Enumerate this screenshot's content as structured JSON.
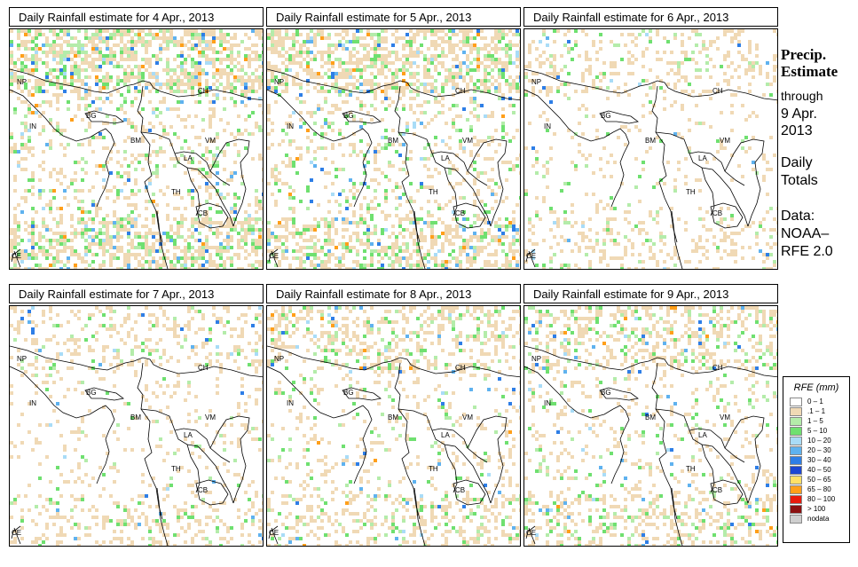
{
  "panels": [
    {
      "title": "Daily Rainfall estimate for  4 Apr., 2013",
      "level": "high"
    },
    {
      "title": "Daily Rainfall estimate for  5 Apr., 2013",
      "level": "high"
    },
    {
      "title": "Daily Rainfall estimate for  6 Apr., 2013",
      "level": "low"
    },
    {
      "title": "Daily Rainfall estimate for  7 Apr., 2013",
      "level": "low"
    },
    {
      "title": "Daily Rainfall estimate for  8 Apr., 2013",
      "level": "mid"
    },
    {
      "title": "Daily Rainfall estimate for  9 Apr., 2013",
      "level": "mid"
    }
  ],
  "country_labels": [
    "NP",
    "CH",
    "IN",
    "BG",
    "BM",
    "VM",
    "LA",
    "TH",
    "CB",
    "CE"
  ],
  "sidebar": {
    "title_line1": "Precip.",
    "title_line2": "Estimate",
    "through": "through",
    "date_line1": "9 Apr.",
    "date_line2": "2013",
    "daily_line1": "Daily",
    "daily_line2": "Totals",
    "data_line1": "Data:",
    "data_line2": "NOAA–",
    "data_line3": "RFE 2.0"
  },
  "legend": {
    "title": "RFE (mm)",
    "items": [
      {
        "label": "0 – 1",
        "color": "#ffffff"
      },
      {
        "label": ".1 – 1",
        "color": "#f0d9b5"
      },
      {
        "label": "1 – 5",
        "color": "#b4ecaa"
      },
      {
        "label": "5 – 10",
        "color": "#6fe070"
      },
      {
        "label": "10 – 20",
        "color": "#a9dcf7"
      },
      {
        "label": "20 – 30",
        "color": "#5fb2ef"
      },
      {
        "label": "30 – 40",
        "color": "#2e7ee6"
      },
      {
        "label": "40 – 50",
        "color": "#1c46d2"
      },
      {
        "label": "50 – 65",
        "color": "#ffe066"
      },
      {
        "label": "65 – 80",
        "color": "#ff9f1a"
      },
      {
        "label": "80 – 100",
        "color": "#e81a0c"
      },
      {
        "label": "> 100",
        "color": "#8b1010"
      },
      {
        "label": "nodata",
        "color": "#cfcfcf"
      }
    ]
  }
}
